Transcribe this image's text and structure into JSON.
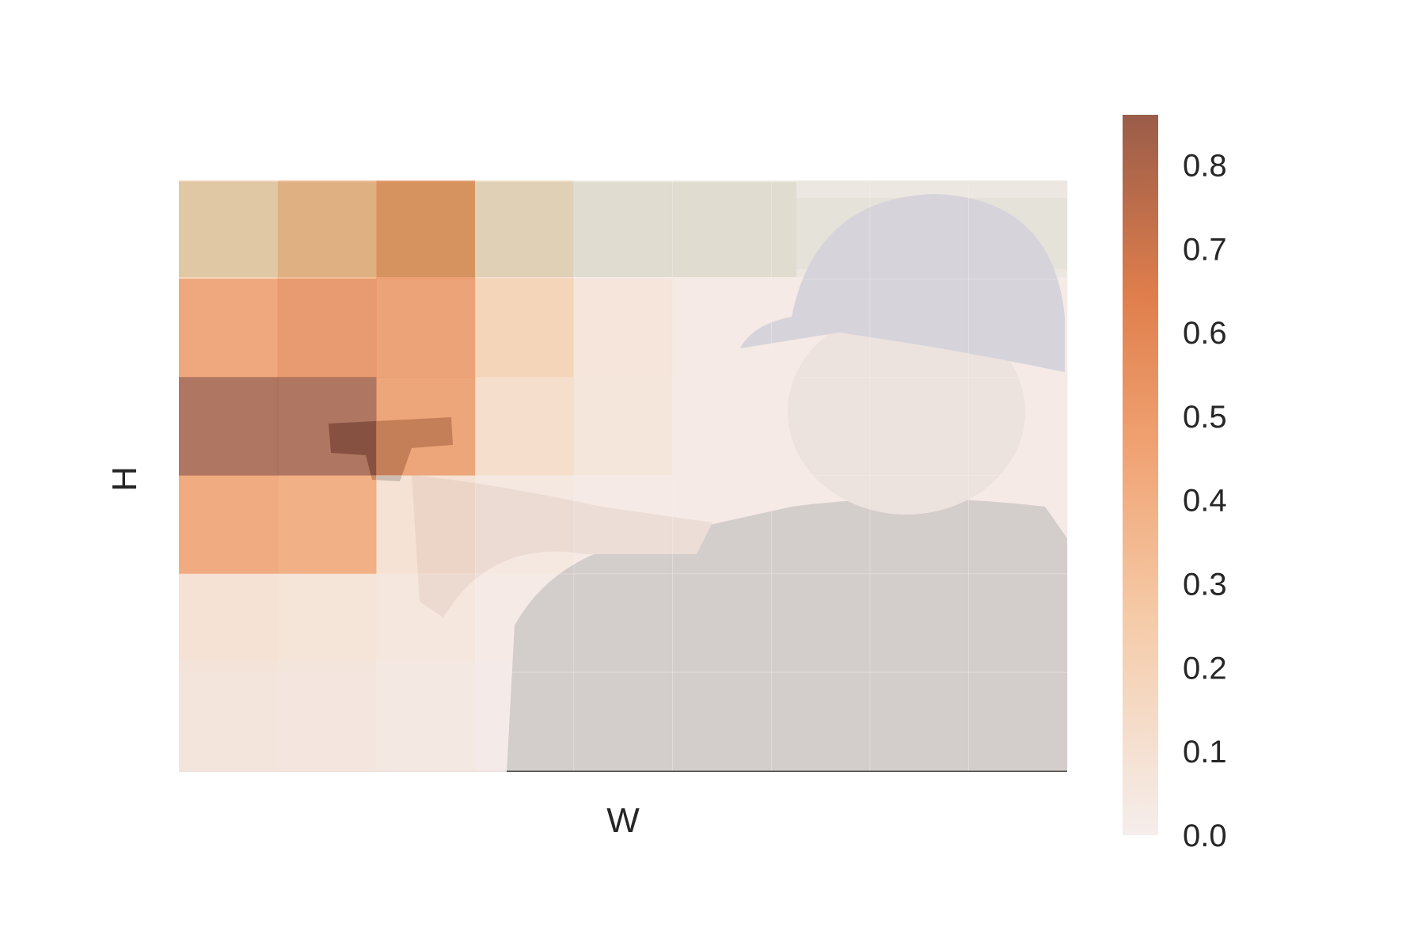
{
  "chart_data": {
    "type": "heatmap",
    "title": "",
    "xlabel": "W",
    "ylabel": "H",
    "rows": 6,
    "cols": 9,
    "values": [
      [
        0.2,
        0.37,
        0.55,
        0.12,
        0.0,
        0.0,
        0.0,
        0.0,
        0.0
      ],
      [
        0.5,
        0.58,
        0.53,
        0.2,
        0.05,
        0.0,
        0.0,
        0.0,
        0.0
      ],
      [
        0.85,
        0.85,
        0.52,
        0.12,
        0.04,
        0.0,
        0.0,
        0.0,
        0.0
      ],
      [
        0.48,
        0.45,
        0.08,
        0.02,
        0.0,
        0.0,
        0.0,
        0.0,
        0.0
      ],
      [
        0.08,
        0.06,
        0.03,
        0.0,
        0.0,
        0.0,
        0.0,
        0.0,
        0.0
      ],
      [
        0.06,
        0.05,
        0.03,
        0.0,
        0.0,
        0.0,
        0.0,
        0.0,
        0.0
      ]
    ],
    "colorbar": {
      "vmin": 0.0,
      "vmax": 0.86,
      "ticks": [
        0.0,
        0.1,
        0.2,
        0.3,
        0.4,
        0.5,
        0.6,
        0.7,
        0.8
      ],
      "tick_labels": [
        "0.0",
        "0.1",
        "0.2",
        "0.3",
        "0.4",
        "0.5",
        "0.6",
        "0.7",
        "0.8"
      ],
      "colors": [
        "#f5eeec",
        "#f5cba8",
        "#f0a070",
        "#df7e4c",
        "#9a5c49"
      ]
    },
    "grid": false,
    "legend": "right"
  }
}
